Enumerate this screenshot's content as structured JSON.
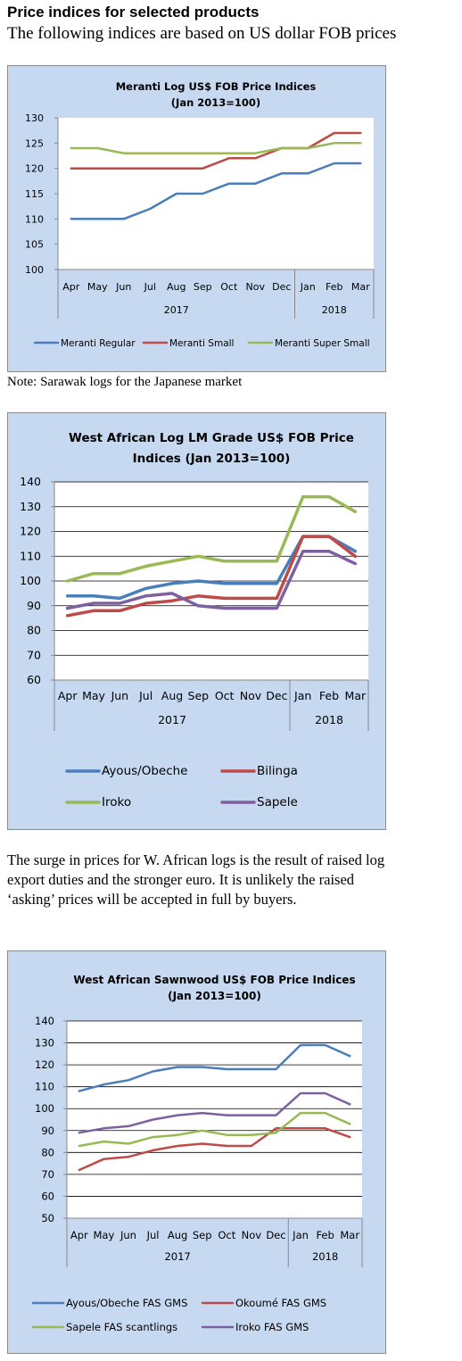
{
  "header": {
    "title": "Price indices for selected products",
    "subtitle": "The following indices are based on US dollar FOB prices"
  },
  "note1": "Note: Sarawak logs for the Japanese market",
  "paragraph": [
    "The surge in prices for W. African logs is the result of raised log",
    "export duties and the stronger euro. It is unlikely the raised",
    "‘asking’ prices will be accepted in full by buyers."
  ],
  "chart_data": [
    {
      "type": "line",
      "title": [
        "Meranti Log US$ FOB Price Indices",
        "(Jan 2013=100)"
      ],
      "categories": [
        "Apr",
        "May",
        "Jun",
        "Jul",
        "Aug",
        "Sep",
        "Oct",
        "Nov",
        "Dec",
        "Jan",
        "Feb",
        "Mar"
      ],
      "year_groups": [
        {
          "label": "2017",
          "start": 0,
          "end": 8
        },
        {
          "label": "2018",
          "start": 9,
          "end": 11
        }
      ],
      "ylim": [
        100,
        130
      ],
      "yticks": [
        100,
        105,
        110,
        115,
        120,
        125,
        130
      ],
      "grid": false,
      "legend_position": "bottom",
      "series": [
        {
          "name": "Meranti Regular",
          "color": "#4a7ebb",
          "values": [
            110,
            110,
            110,
            112,
            115,
            115,
            117,
            117,
            119,
            119,
            121,
            121
          ]
        },
        {
          "name": "Meranti Small",
          "color": "#be4b48",
          "values": [
            120,
            120,
            120,
            120,
            120,
            120,
            122,
            122,
            124,
            124,
            127,
            127
          ]
        },
        {
          "name": "Meranti Super Small",
          "color": "#98b954",
          "values": [
            124,
            124,
            123,
            123,
            123,
            123,
            123,
            123,
            124,
            124,
            125,
            125
          ]
        }
      ]
    },
    {
      "type": "line",
      "title": [
        "West African Log LM Grade US$ FOB Price",
        "Indices (Jan 2013=100)"
      ],
      "categories": [
        "Apr",
        "May",
        "Jun",
        "Jul",
        "Aug",
        "Sep",
        "Oct",
        "Nov",
        "Dec",
        "Jan",
        "Feb",
        "Mar"
      ],
      "year_groups": [
        {
          "label": "2017",
          "start": 0,
          "end": 8
        },
        {
          "label": "2018",
          "start": 9,
          "end": 11
        }
      ],
      "ylim": [
        60,
        140
      ],
      "yticks": [
        60,
        70,
        80,
        90,
        100,
        110,
        120,
        130,
        140
      ],
      "grid": true,
      "legend_position": "bottom",
      "series": [
        {
          "name": "Ayous/Obeche",
          "color": "#4a7ebb",
          "values": [
            94,
            94,
            93,
            97,
            99,
            100,
            99,
            99,
            99,
            118,
            118,
            112
          ]
        },
        {
          "name": "Bilinga",
          "color": "#be4b48",
          "values": [
            86,
            88,
            88,
            91,
            92,
            94,
            93,
            93,
            93,
            118,
            118,
            110
          ]
        },
        {
          "name": "Iroko",
          "color": "#98b954",
          "values": [
            100,
            103,
            103,
            106,
            108,
            110,
            108,
            108,
            108,
            134,
            134,
            128
          ]
        },
        {
          "name": "Sapele",
          "color": "#7d60a0",
          "values": [
            89,
            91,
            91,
            94,
            95,
            90,
            89,
            89,
            89,
            112,
            112,
            107
          ]
        }
      ]
    },
    {
      "type": "line",
      "title": [
        "West African Sawnwood US$ FOB Price Indices",
        "(Jan 2013=100)"
      ],
      "categories": [
        "Apr",
        "May",
        "Jun",
        "Jul",
        "Aug",
        "Sep",
        "Oct",
        "Nov",
        "Dec",
        "Jan",
        "Feb",
        "Mar"
      ],
      "year_groups": [
        {
          "label": "2017",
          "start": 0,
          "end": 8
        },
        {
          "label": "2018",
          "start": 9,
          "end": 11
        }
      ],
      "ylim": [
        50,
        140
      ],
      "yticks": [
        50,
        60,
        70,
        80,
        90,
        100,
        110,
        120,
        130,
        140
      ],
      "grid": true,
      "legend_position": "bottom",
      "series": [
        {
          "name": "Ayous/Obeche FAS GMS",
          "color": "#4a7ebb",
          "values": [
            108,
            111,
            113,
            117,
            119,
            119,
            118,
            118,
            118,
            129,
            129,
            124
          ]
        },
        {
          "name": "Okoumé FAS GMS",
          "color": "#be4b48",
          "values": [
            72,
            77,
            78,
            81,
            83,
            84,
            83,
            83,
            91,
            91,
            91,
            87
          ]
        },
        {
          "name": "Sapele FAS scantlings",
          "color": "#98b954",
          "values": [
            83,
            85,
            84,
            87,
            88,
            90,
            88,
            88,
            89,
            98,
            98,
            93
          ]
        },
        {
          "name": "Iroko FAS GMS",
          "color": "#7d60a0",
          "values": [
            89,
            91,
            92,
            95,
            97,
            98,
            97,
            97,
            97,
            107,
            107,
            102
          ]
        }
      ]
    }
  ]
}
